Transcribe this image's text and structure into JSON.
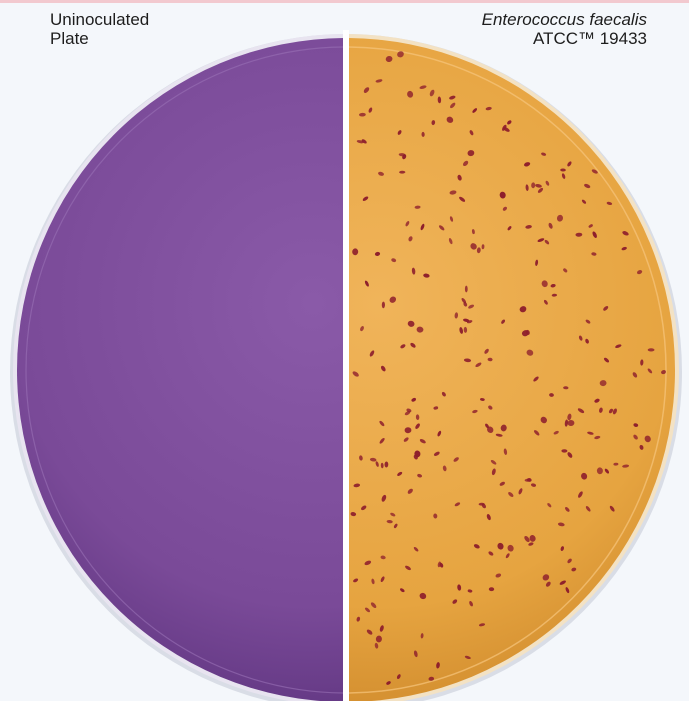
{
  "labels": {
    "left_line1": "Uninoculated",
    "left_line2": "Plate",
    "right_line1": "Enterococcus faecalis",
    "right_line2": "ATCC™ 19433"
  },
  "colors": {
    "background": "#f4f7fb",
    "uninoculated_medium": "#7a4a98",
    "inoculated_medium": "#e6a440",
    "colony": "#8e1f2c",
    "divider": "#ffffff"
  }
}
